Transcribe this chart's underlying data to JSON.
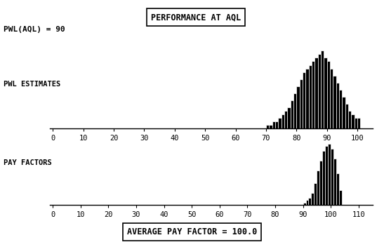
{
  "title": "PERFORMANCE AT AQL",
  "pwl_aql_label": "PWL(AQL) = 90",
  "pwl_label": "PWL ESTIMATES",
  "pf_label": "PAY FACTORS",
  "avg_pf_label": "AVERAGE PAY FACTOR = 100.0",
  "background_color": "#ffffff",
  "bar_color": "#000000",
  "pwl_xlim": [
    -1,
    105
  ],
  "pwl_xticks": [
    0,
    10,
    20,
    30,
    40,
    50,
    60,
    70,
    80,
    90,
    100
  ],
  "pf_xlim": [
    -1,
    115
  ],
  "pf_xticks": [
    0,
    10,
    20,
    30,
    40,
    50,
    60,
    70,
    80,
    90,
    100,
    110
  ],
  "pwl_bins": [
    70,
    71,
    72,
    73,
    74,
    75,
    76,
    77,
    78,
    79,
    80,
    81,
    82,
    83,
    84,
    85,
    86,
    87,
    88,
    89,
    90,
    91,
    92,
    93,
    94,
    95,
    96,
    97,
    98,
    99,
    100
  ],
  "pwl_heights": [
    1,
    1,
    2,
    2,
    3,
    4,
    5,
    6,
    8,
    10,
    12,
    14,
    16,
    17,
    18,
    19,
    20,
    21,
    22,
    20,
    19,
    17,
    15,
    13,
    11,
    9,
    7,
    5,
    4,
    3,
    3
  ],
  "pf_bins": [
    90,
    91,
    92,
    93,
    94,
    95,
    96,
    97,
    98,
    99,
    100,
    101,
    102,
    103
  ],
  "pf_heights": [
    1,
    2,
    3,
    5,
    9,
    14,
    18,
    22,
    24,
    25,
    23,
    19,
    13,
    6
  ]
}
